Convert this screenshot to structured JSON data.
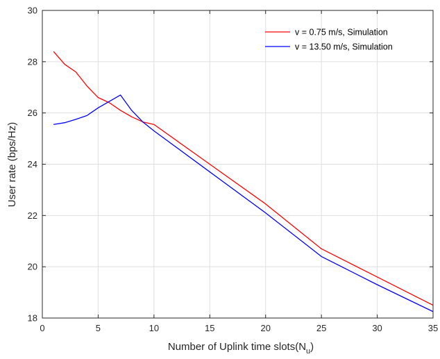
{
  "chart_data": {
    "type": "line",
    "xlabel_main": "Number of Uplink time slots(N",
    "xlabel_sub": "u",
    "xlabel_close": ")",
    "ylabel": "User rate (bps/Hz)",
    "xlim": [
      0,
      35
    ],
    "ylim": [
      18,
      30
    ],
    "xticks": [
      0,
      5,
      10,
      15,
      20,
      25,
      30,
      35
    ],
    "yticks": [
      18,
      20,
      22,
      24,
      26,
      28,
      30
    ],
    "grid": true,
    "legend_position": "top-right",
    "series": [
      {
        "name": "v = 0.75 m/s, Simulation",
        "color": "#ff0000",
        "x": [
          1,
          2,
          3,
          4,
          5,
          6,
          7,
          8,
          9,
          10,
          15,
          20,
          25,
          30,
          35
        ],
        "y": [
          28.4,
          27.9,
          27.6,
          27.05,
          26.6,
          26.4,
          26.1,
          25.85,
          25.65,
          25.55,
          24.0,
          22.45,
          20.7,
          19.6,
          18.5
        ]
      },
      {
        "name": "v = 13.50 m/s, Simulation",
        "color": "#0000ff",
        "x": [
          1,
          2,
          3,
          4,
          5,
          6,
          7,
          8,
          9,
          10,
          15,
          20,
          25,
          30,
          35
        ],
        "y": [
          25.55,
          25.62,
          25.75,
          25.9,
          26.2,
          26.45,
          26.7,
          26.1,
          25.65,
          25.3,
          23.7,
          22.1,
          20.4,
          19.3,
          18.25
        ]
      }
    ]
  }
}
